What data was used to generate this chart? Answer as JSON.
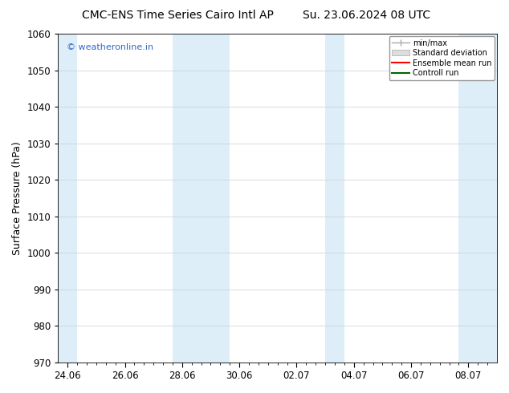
{
  "title_left": "CMC-ENS Time Series Cairo Intl AP",
  "title_right": "Su. 23.06.2024 08 UTC",
  "ylabel": "Surface Pressure (hPa)",
  "ylim": [
    970,
    1060
  ],
  "yticks": [
    970,
    980,
    990,
    1000,
    1010,
    1020,
    1030,
    1040,
    1050,
    1060
  ],
  "xtick_labels": [
    "24.06",
    "26.06",
    "28.06",
    "30.06",
    "02.07",
    "04.07",
    "06.07",
    "08.07"
  ],
  "shaded_color": "#ddeef8",
  "background_color": "#ffffff",
  "watermark_text": "© weatheronline.in",
  "watermark_color": "#3366cc",
  "legend_labels": [
    "min/max",
    "Standard deviation",
    "Ensemble mean run",
    "Controll run"
  ],
  "legend_colors": [
    "#aaaaaa",
    "#cccccc",
    "#ff0000",
    "#006600"
  ],
  "title_fontsize": 10,
  "axis_fontsize": 9,
  "tick_fontsize": 8.5,
  "total_days": 46,
  "xlim_start": 0,
  "xlim_end": 46,
  "shaded_bands": [
    {
      "start": 0,
      "end": 2
    },
    {
      "start": 12,
      "end": 18
    },
    {
      "start": 28,
      "end": 30
    },
    {
      "start": 42,
      "end": 46
    }
  ],
  "xtick_positions": [
    1,
    7,
    13,
    19,
    25,
    31,
    37,
    43
  ],
  "minor_tick_positions": [
    1,
    2,
    3,
    4,
    5,
    6,
    7,
    8,
    9,
    10,
    11,
    12,
    13,
    14,
    15,
    16,
    17,
    18,
    19,
    20,
    21,
    22,
    23,
    24,
    25,
    26,
    27,
    28,
    29,
    30,
    31,
    32,
    33,
    34,
    35,
    36,
    37,
    38,
    39,
    40,
    41,
    42,
    43,
    44,
    45
  ]
}
